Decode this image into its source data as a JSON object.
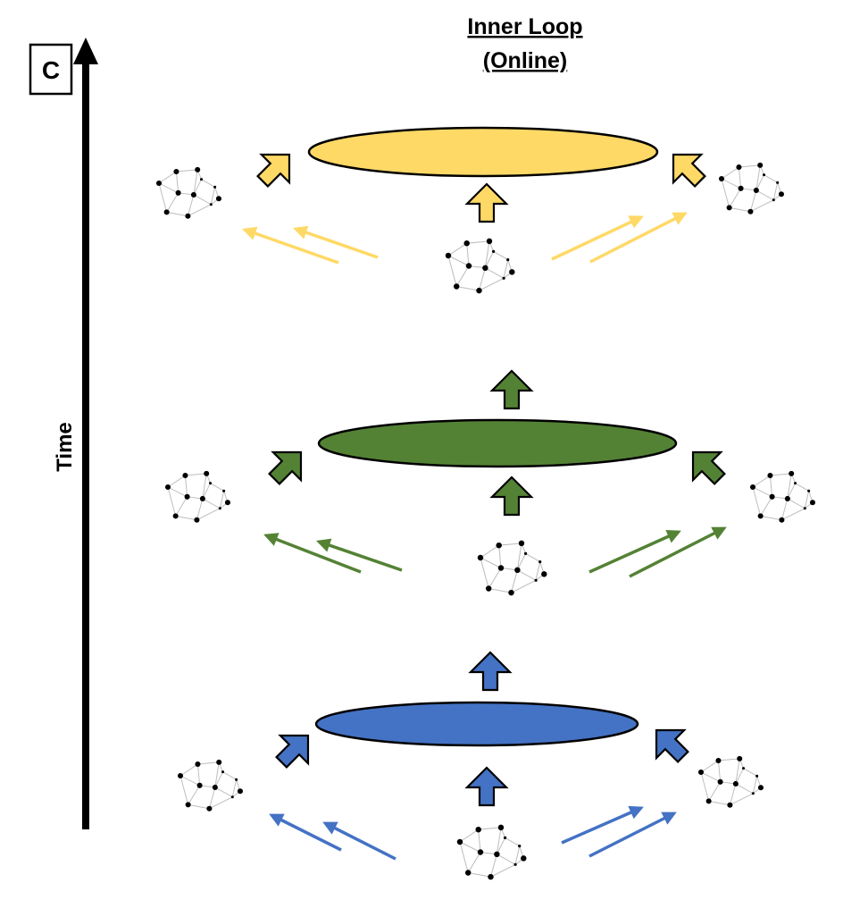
{
  "panel_label": "C",
  "title": {
    "line1": "Inner Loop",
    "line2": "(Online)"
  },
  "axis": {
    "label": "Time"
  },
  "colors": {
    "yellow": "#FFD966",
    "green": "#548235",
    "blue": "#4472C4",
    "yellow_line": "#FFD966",
    "green_line": "#548235",
    "blue_line": "#4472C4",
    "outline": "#000000",
    "network_edge": "#bdbdbd",
    "node": "#000000"
  },
  "levels": [
    {
      "name": "level-top",
      "color": "yellow",
      "has_top_arrow": false
    },
    {
      "name": "level-middle",
      "color": "green",
      "has_top_arrow": true
    },
    {
      "name": "level-bottom",
      "color": "blue",
      "has_top_arrow": true
    }
  ]
}
